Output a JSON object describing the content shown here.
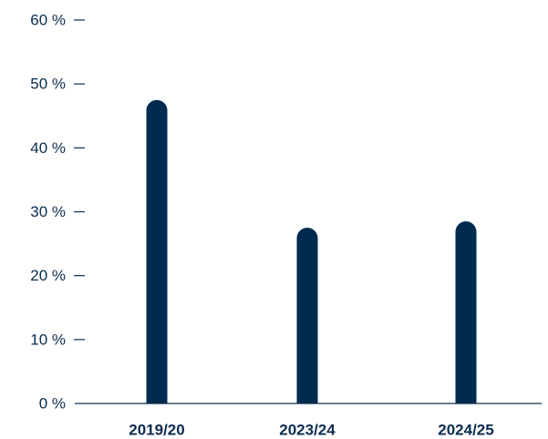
{
  "chart_data": {
    "type": "bar",
    "title": "",
    "xlabel": "",
    "ylabel": "",
    "categories": [
      "2019/20",
      "2023/24",
      "2024/25"
    ],
    "values": [
      47.5,
      27.5,
      28.5
    ],
    "ylim": [
      0,
      60
    ],
    "yticks": [
      0,
      10,
      20,
      30,
      40,
      50,
      60
    ],
    "ytick_suffix": " %",
    "grid": false,
    "legend": "none",
    "bar_color": "#002b50",
    "text_color": "#0c2d4f",
    "axis_color": "#0c2d4f"
  }
}
